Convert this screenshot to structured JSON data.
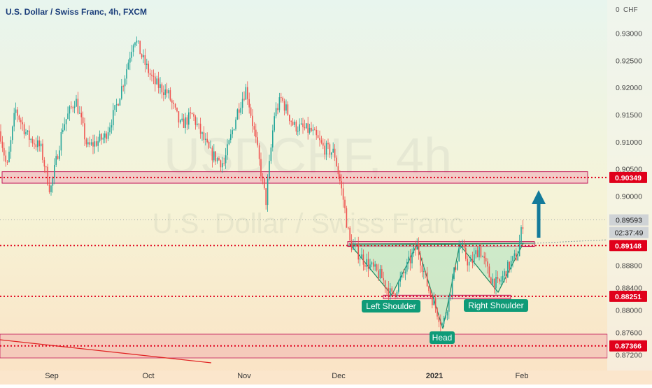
{
  "chart_data": {
    "type": "candlestick",
    "symbol_header": "U.S. Dollar / Swiss Franc, 4h, FXCM",
    "currency_label": "CHF",
    "currency_prefix": "0",
    "watermark_symbol": "USDCHF, 4h",
    "watermark_name": "U.S. Dollar / Swiss Franc",
    "y_ticks": [
      0.93,
      0.925,
      0.92,
      0.915,
      0.91,
      0.905,
      0.9,
      0.888,
      0.884,
      0.88,
      0.876,
      0.872
    ],
    "y_tick_labels": [
      "0.93000",
      "0.92500",
      "0.92000",
      "0.91500",
      "0.91000",
      "0.90500",
      "0.90000",
      "0.88800",
      "0.88400",
      "0.88000",
      "0.87600",
      "0.87200"
    ],
    "x_ticks": [
      {
        "label": "Sep",
        "bold": false
      },
      {
        "label": "Oct",
        "bold": false
      },
      {
        "label": "Nov",
        "bold": false
      },
      {
        "label": "Dec",
        "bold": false
      },
      {
        "label": "2021",
        "bold": true
      },
      {
        "label": "Feb",
        "bold": false
      }
    ],
    "levels": [
      {
        "price": 0.90349,
        "label": "0.90349",
        "style": "dotted",
        "color": "#e0001b"
      },
      {
        "price": 0.89148,
        "label": "0.89148",
        "style": "dotted",
        "color": "#e0001b"
      },
      {
        "price": 0.88251,
        "label": "0.88251",
        "style": "dotted",
        "color": "#e0001b"
      },
      {
        "price": 0.87366,
        "label": "0.87366",
        "style": "dotted",
        "color": "#e0001b"
      }
    ],
    "current_price": {
      "value": 0.89593,
      "label": "0.89593",
      "countdown": "02:37:49"
    },
    "pattern_labels": [
      {
        "name": "left-shoulder",
        "text": "Left Shoulder"
      },
      {
        "name": "head",
        "text": "Head"
      },
      {
        "name": "right-shoulder",
        "text": "Right Shoulder"
      }
    ],
    "colors": {
      "bull": "#26a69a",
      "bear": "#ef5350",
      "level": "#e0001b",
      "zone_fill": "#f1aab8",
      "zone_border": "#c2185b",
      "arrow": "#137a9a",
      "label_bg": "#0f9b78",
      "pattern_fill": "#b9e6c4"
    }
  }
}
